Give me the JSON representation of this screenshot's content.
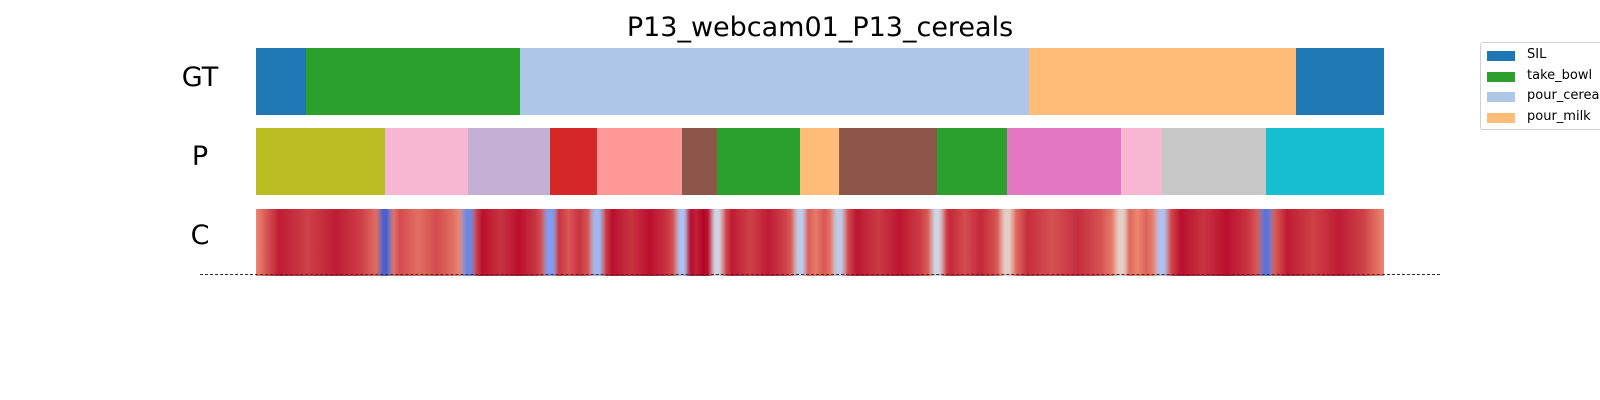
{
  "chart_data": {
    "type": "heatmap",
    "title": "P13_webcam01_P13_cereals",
    "x_range": [
      0,
      1000
    ],
    "rows": [
      {
        "label": "GT",
        "segments": [
          {
            "start": 0,
            "end": 44,
            "color": "#1f77b4"
          },
          {
            "start": 44,
            "end": 234,
            "color": "#2ca02c"
          },
          {
            "start": 234,
            "end": 685,
            "color": "#aec7e8"
          },
          {
            "start": 685,
            "end": 922,
            "color": "#ffbb78"
          },
          {
            "start": 922,
            "end": 1000,
            "color": "#1f77b4"
          }
        ]
      },
      {
        "label": "P",
        "segments": [
          {
            "start": 0,
            "end": 114,
            "color": "#bcbd22"
          },
          {
            "start": 114,
            "end": 188,
            "color": "#f7b6d2"
          },
          {
            "start": 188,
            "end": 261,
            "color": "#c5b0d5"
          },
          {
            "start": 261,
            "end": 302,
            "color": "#d62728"
          },
          {
            "start": 302,
            "end": 378,
            "color": "#ff9896"
          },
          {
            "start": 378,
            "end": 409,
            "color": "#8c564b"
          },
          {
            "start": 409,
            "end": 482,
            "color": "#2ca02c"
          },
          {
            "start": 482,
            "end": 517,
            "color": "#ffbb78"
          },
          {
            "start": 517,
            "end": 604,
            "color": "#8c564b"
          },
          {
            "start": 604,
            "end": 666,
            "color": "#2ca02c"
          },
          {
            "start": 666,
            "end": 767,
            "color": "#e377c2"
          },
          {
            "start": 767,
            "end": 803,
            "color": "#f7b6d2"
          },
          {
            "start": 803,
            "end": 895,
            "color": "#c7c7c7"
          },
          {
            "start": 895,
            "end": 1000,
            "color": "#17becf"
          }
        ]
      },
      {
        "label": "C",
        "colormap": "coolwarm",
        "segments": [
          {
            "start": 0,
            "end": 114,
            "value": 0.9
          },
          {
            "start": 114,
            "end": 188,
            "value": 0.82
          },
          {
            "start": 188,
            "end": 261,
            "value": 0.92
          },
          {
            "start": 261,
            "end": 302,
            "value": 0.86
          },
          {
            "start": 302,
            "end": 378,
            "value": 0.92
          },
          {
            "start": 378,
            "end": 409,
            "value": 0.95
          },
          {
            "start": 409,
            "end": 482,
            "value": 0.9
          },
          {
            "start": 482,
            "end": 517,
            "value": 0.8
          },
          {
            "start": 517,
            "end": 604,
            "value": 0.91
          },
          {
            "start": 604,
            "end": 666,
            "value": 0.88
          },
          {
            "start": 666,
            "end": 767,
            "value": 0.87
          },
          {
            "start": 767,
            "end": 803,
            "value": 0.78
          },
          {
            "start": 803,
            "end": 895,
            "value": 0.92
          },
          {
            "start": 895,
            "end": 1000,
            "value": 0.9
          }
        ],
        "dips": [
          {
            "at": 114,
            "value": 0.05
          },
          {
            "at": 188,
            "value": 0.15
          },
          {
            "at": 261,
            "value": 0.2
          },
          {
            "at": 302,
            "value": 0.3
          },
          {
            "at": 378,
            "value": 0.35
          },
          {
            "at": 409,
            "value": 0.45
          },
          {
            "at": 482,
            "value": 0.4
          },
          {
            "at": 517,
            "value": 0.4
          },
          {
            "at": 604,
            "value": 0.45
          },
          {
            "at": 666,
            "value": 0.55
          },
          {
            "at": 767,
            "value": 0.55
          },
          {
            "at": 803,
            "value": 0.35
          },
          {
            "at": 895,
            "value": 0.1
          }
        ]
      }
    ],
    "legend": {
      "placement": "top-right",
      "entries": [
        {
          "name": "SIL",
          "color": "#1f77b4"
        },
        {
          "name": "take_bowl",
          "color": "#2ca02c"
        },
        {
          "name": "pour_cereals",
          "color": "#aec7e8"
        },
        {
          "name": "pour_milk",
          "color": "#ffbb78"
        }
      ]
    }
  }
}
